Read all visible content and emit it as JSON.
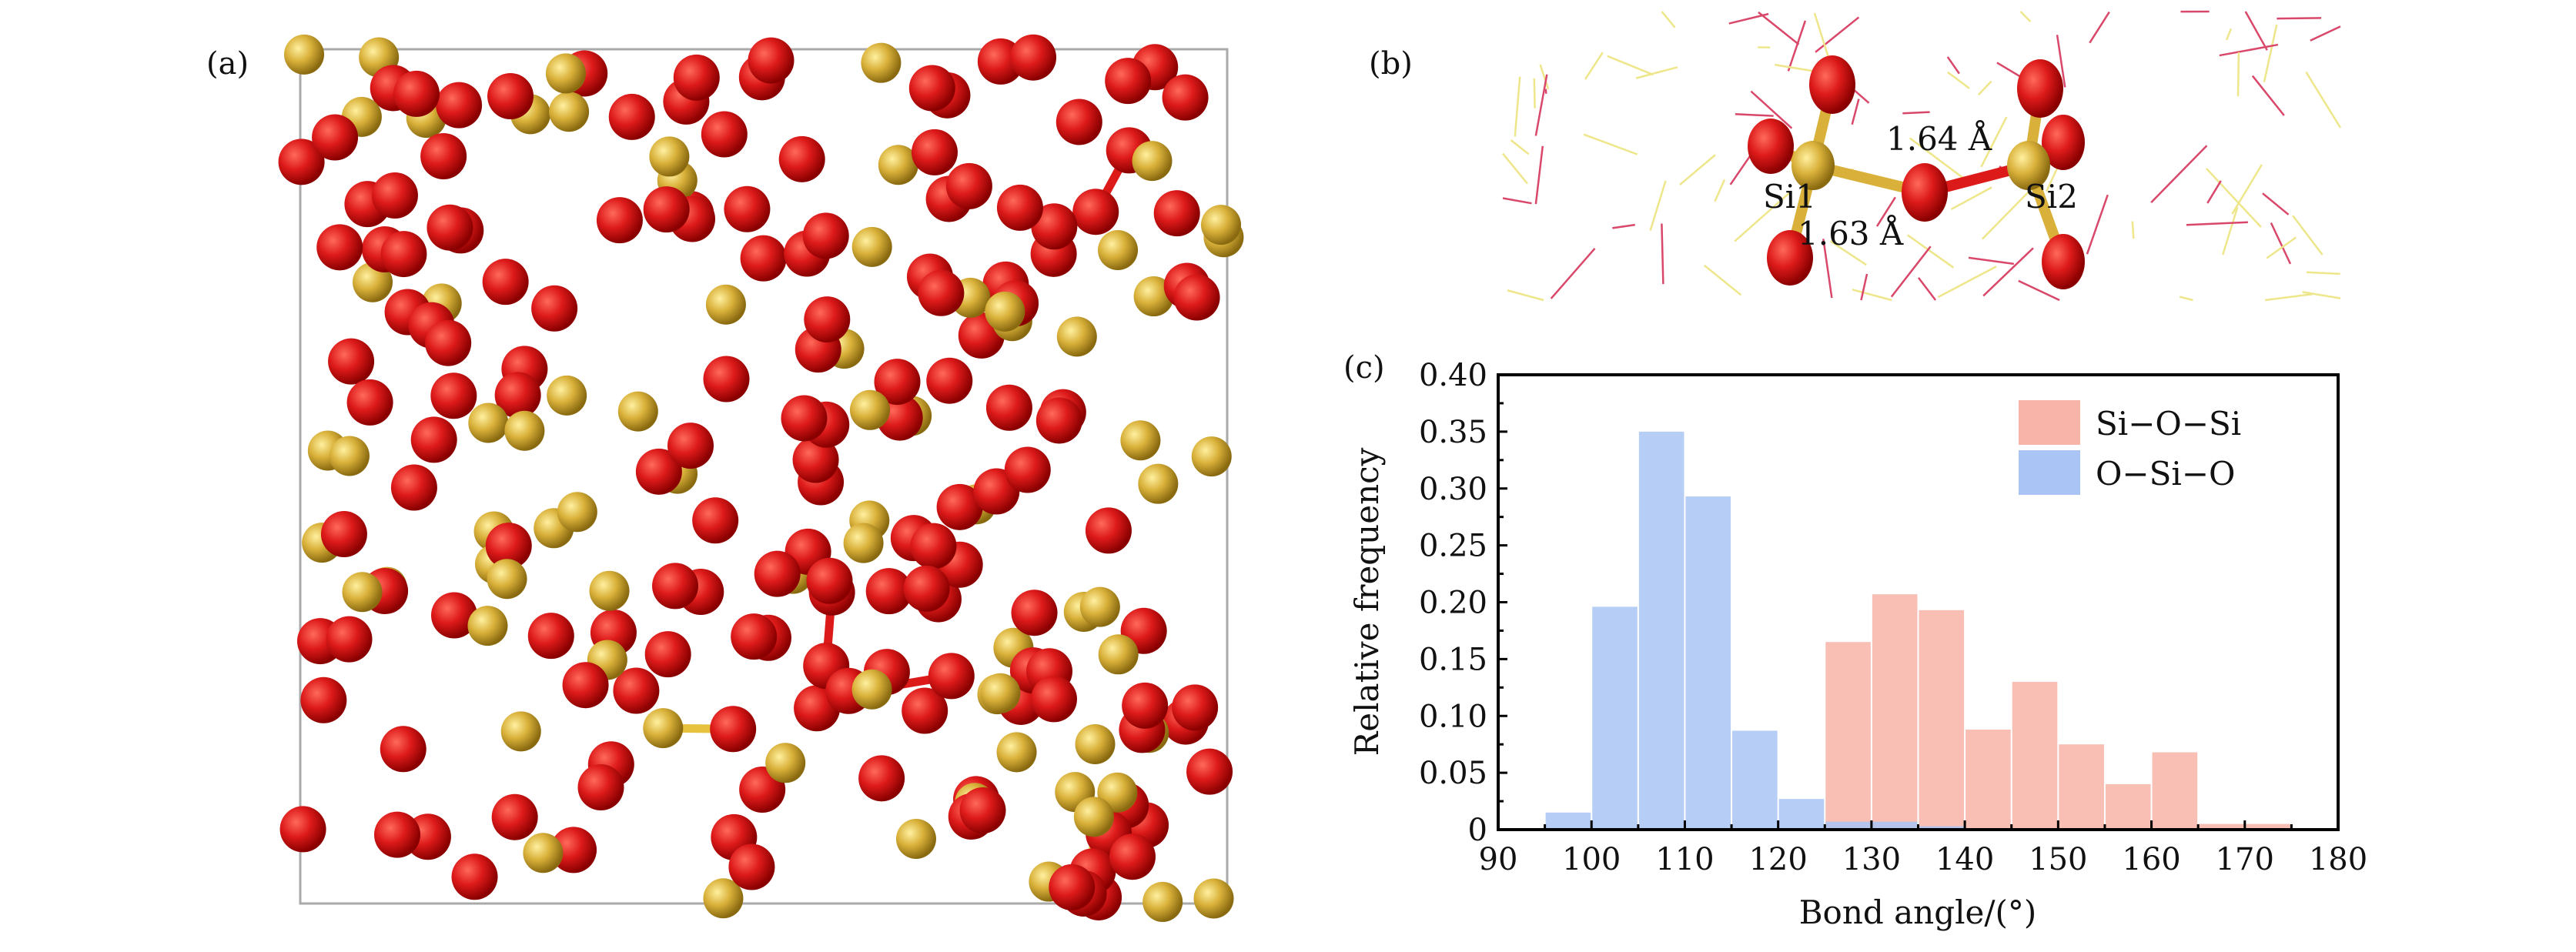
{
  "panels": {
    "a": {
      "label": "(a)",
      "atom_colors": {
        "Si": "#d9b13a",
        "O": "#dd1a1a"
      }
    },
    "b": {
      "label": "(b)",
      "atom_labels": [
        "Si1",
        "Si2"
      ],
      "bond_labels": [
        "1.64 Å",
        "1.63 Å"
      ]
    },
    "c": {
      "label": "(c)"
    }
  },
  "chart_data": {
    "type": "bar",
    "subtype": "overlapping histogram",
    "xlabel": "Bond angle/(°)",
    "ylabel": "Relative frequency",
    "xlim": [
      90,
      180
    ],
    "ylim": [
      0,
      0.4
    ],
    "xticks": [
      "90",
      "100",
      "110",
      "120",
      "130",
      "140",
      "150",
      "160",
      "170",
      "180"
    ],
    "yticks": [
      "0",
      "0.05",
      "0.10",
      "0.15",
      "0.20",
      "0.25",
      "0.30",
      "0.35",
      "0.40"
    ],
    "grid": false,
    "legend_position": "top-right",
    "bin_width": 5,
    "bin_starts": [
      95,
      100,
      105,
      110,
      115,
      120,
      125,
      130,
      135,
      140,
      145,
      150,
      155,
      160,
      165,
      170
    ],
    "series": [
      {
        "name": "Si−O−Si",
        "color": "#f8b4a8",
        "values": [
          0,
          0,
          0,
          0,
          0,
          0,
          0.165,
          0.207,
          0.193,
          0.088,
          0.13,
          0.075,
          0.04,
          0.068,
          0.005,
          0.005
        ]
      },
      {
        "name": "O−Si−O",
        "color": "#a9c4f5",
        "values": [
          0.015,
          0.196,
          0.35,
          0.293,
          0.087,
          0.027,
          0.007,
          0.007,
          0.003,
          0,
          0,
          0,
          0,
          0,
          0,
          0
        ]
      }
    ]
  }
}
